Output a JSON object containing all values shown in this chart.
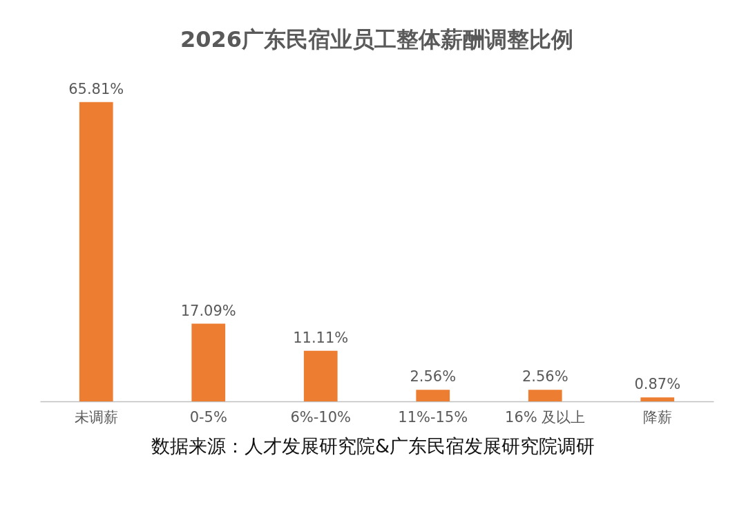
{
  "chart_data": {
    "type": "bar",
    "title": "2026广东民宿业员工整体薪酬调整比例",
    "categories": [
      "未调薪",
      "0-5%",
      "6%-10%",
      "11%-15%",
      "16% 及以上",
      "降薪"
    ],
    "values": [
      65.81,
      17.09,
      11.11,
      2.56,
      2.56,
      0.87
    ],
    "value_labels": [
      "65.81%",
      "17.09%",
      "11.11%",
      "2.56%",
      "2.56%",
      "0.87%"
    ],
    "color": "#ed7d31",
    "annotations": [
      "数据来源：人才发展研究院&广东民宿发展研究院调研"
    ]
  }
}
